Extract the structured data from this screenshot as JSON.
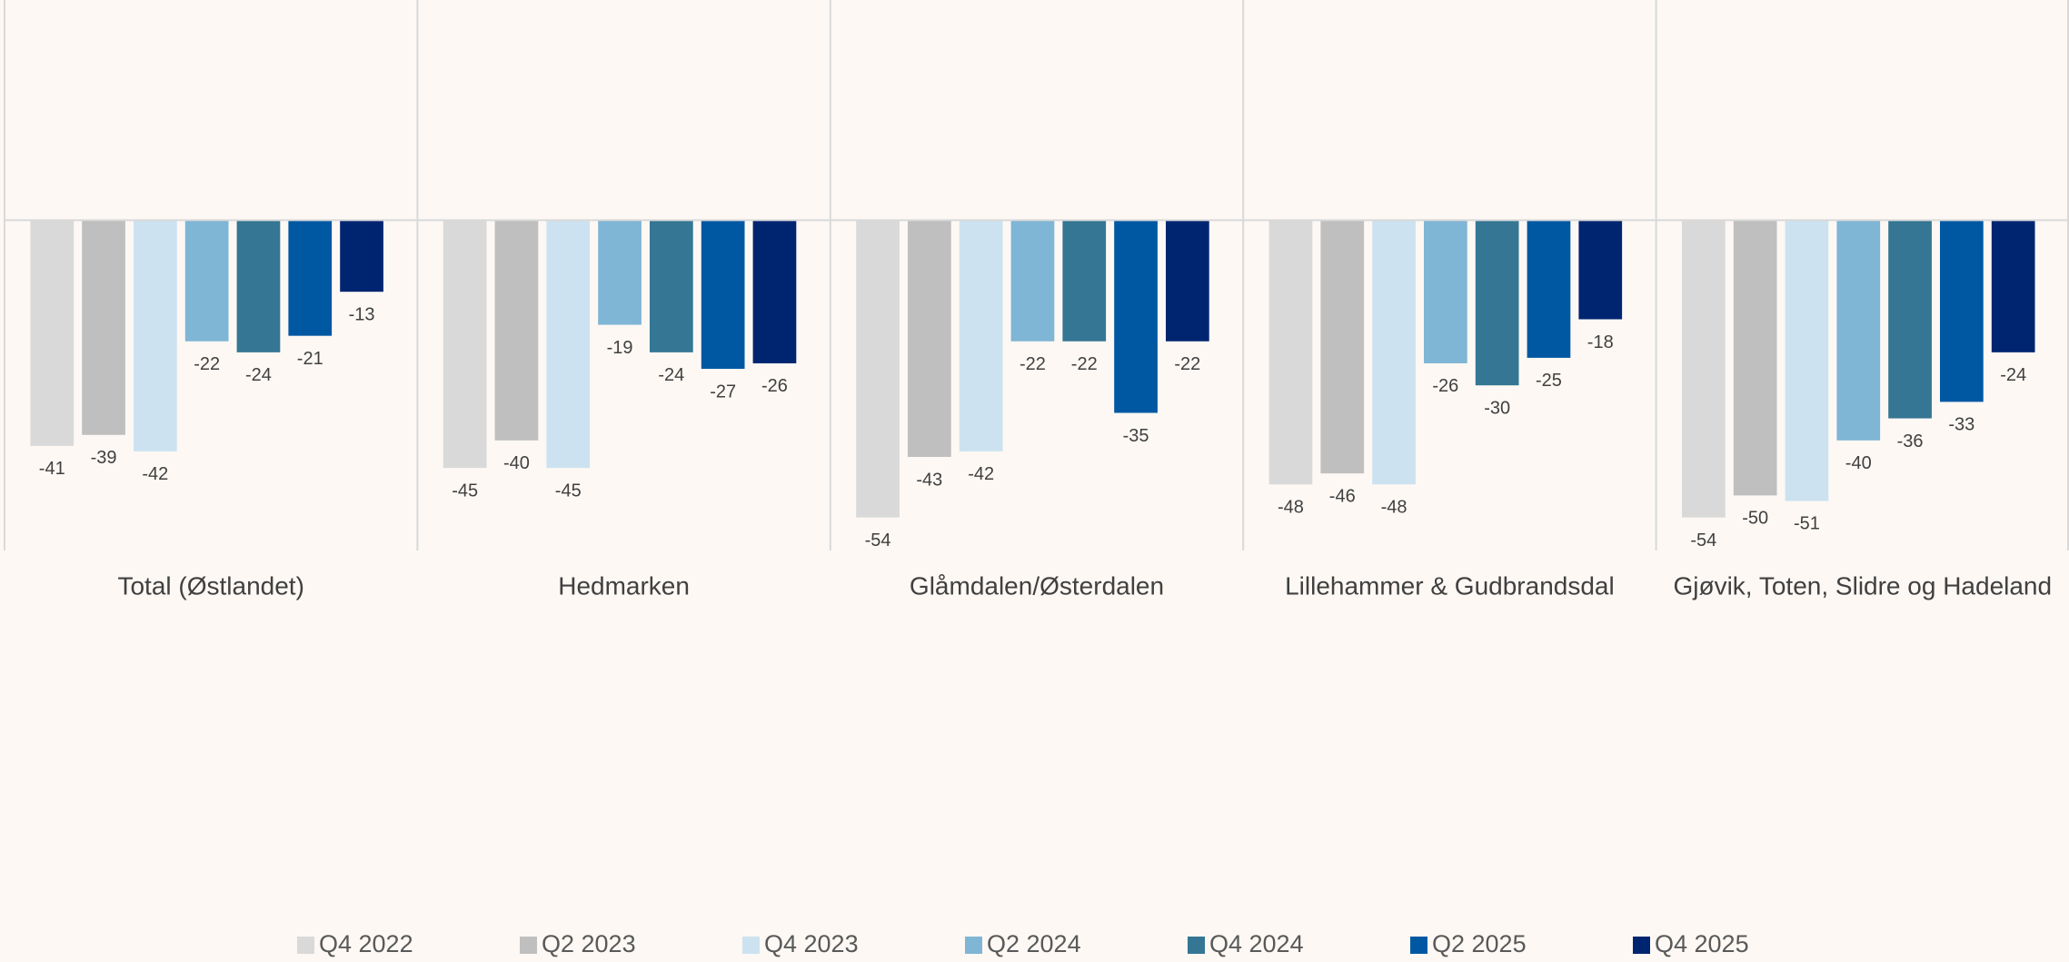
{
  "chart_data": {
    "type": "bar",
    "categories": [
      "Total (Østlandet)",
      "Hedmarken",
      "Glåmdalen/Østerdalen",
      "Lillehammer & Gudbrandsdal",
      "Gjøvik, Toten, Slidre og Hadeland"
    ],
    "series": [
      {
        "name": "Q4 2022",
        "color": "#d9d9d9",
        "values": [
          -41,
          -45,
          -54,
          -48,
          -54
        ]
      },
      {
        "name": "Q2 2023",
        "color": "#bfbfbf",
        "values": [
          -39,
          -40,
          -43,
          -46,
          -50
        ]
      },
      {
        "name": "Q4 2023",
        "color": "#cce2f0",
        "values": [
          -42,
          -45,
          -42,
          -48,
          -51
        ]
      },
      {
        "name": "Q2 2024",
        "color": "#7fb5d5",
        "values": [
          -22,
          -19,
          -22,
          -26,
          -40
        ]
      },
      {
        "name": "Q4 2024",
        "color": "#357694",
        "values": [
          -24,
          -24,
          -22,
          -30,
          -36
        ]
      },
      {
        "name": "Q2 2025",
        "color": "#0058a3",
        "values": [
          -21,
          -27,
          -35,
          -25,
          -33
        ]
      },
      {
        "name": "Q4 2025",
        "color": "#002570",
        "values": [
          -13,
          -26,
          -22,
          -18,
          -24
        ]
      }
    ],
    "ylim": [
      -60,
      40
    ],
    "legend": "bottom"
  }
}
